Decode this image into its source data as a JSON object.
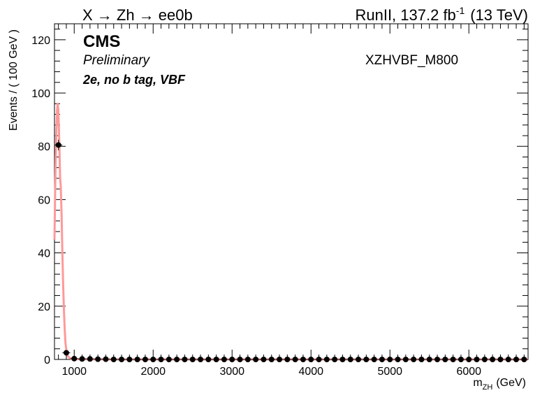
{
  "header": {
    "left_text": "X → Zh → ee0b",
    "right_text_main": "RunII, 137.2 fb",
    "right_text_sup": "-1",
    "right_text_energy": "(13 TeV)"
  },
  "labels": {
    "cms": "CMS",
    "preliminary": "Preliminary",
    "category": "2e, no b tag, VBF",
    "sample": "XZHVBF_M800"
  },
  "axes": {
    "ylabel": "Events / ( 100 GeV )",
    "xlabel_main": "m",
    "xlabel_sub": "ZH",
    "xlabel_unit": "(GeV)"
  },
  "colors": {
    "curve": "#ff9999",
    "points": "#000000"
  },
  "chart_data": {
    "type": "scatter",
    "xlim": [
      750,
      6750
    ],
    "ylim": [
      0,
      126
    ],
    "x_ticks": [
      1000,
      2000,
      3000,
      4000,
      5000,
      6000
    ],
    "y_ticks": [
      0,
      20,
      40,
      60,
      80,
      100,
      120
    ],
    "series": [
      {
        "kind": "points_with_errors",
        "x": [
          800,
          900,
          1000,
          1100,
          1200,
          1300,
          1400,
          1500,
          1600,
          1700,
          1800,
          1900,
          2000,
          2100,
          2200,
          2300,
          2400,
          2500,
          2600,
          2700,
          2800,
          2900,
          3000,
          3100,
          3200,
          3300,
          3400,
          3500,
          3600,
          3700,
          3800,
          3900,
          4000,
          4100,
          4200,
          4300,
          4400,
          4500,
          4600,
          4700,
          4800,
          4900,
          5000,
          5100,
          5200,
          5300,
          5400,
          5500,
          5600,
          5700,
          5800,
          5900,
          6000,
          6100,
          6200,
          6300,
          6400,
          6500,
          6600,
          6700
        ],
        "y": [
          80.5,
          2.5,
          0.3,
          0.2,
          0.2,
          0.1,
          0.1,
          0,
          0,
          0,
          0,
          0,
          0,
          0,
          0,
          0,
          0,
          0,
          0,
          0,
          0,
          0,
          0,
          0,
          0,
          0,
          0,
          0,
          0,
          0,
          0,
          0,
          0,
          0,
          0,
          0,
          0,
          0,
          0,
          0,
          0,
          0,
          0,
          0,
          0,
          0,
          0,
          0,
          0,
          0,
          0,
          0,
          0,
          0,
          0,
          0,
          0,
          0,
          0,
          0
        ],
        "yerr": [
          2.0,
          0.6,
          0.2,
          0.15,
          0.1,
          0.1,
          0.1,
          0,
          0,
          0,
          0,
          0,
          0,
          0,
          0,
          0,
          0,
          0,
          0,
          0,
          0,
          0,
          0,
          0,
          0,
          0,
          0,
          0,
          0,
          0,
          0,
          0,
          0,
          0,
          0,
          0,
          0,
          0,
          0,
          0,
          0,
          0,
          0,
          0,
          0,
          0,
          0,
          0,
          0,
          0,
          0,
          0,
          0,
          0,
          0,
          0,
          0,
          0,
          0,
          0
        ]
      },
      {
        "kind": "curve",
        "x": [
          750,
          758,
          766,
          774,
          782,
          790,
          798,
          806,
          814,
          822,
          830,
          840,
          850,
          860,
          870,
          880,
          890,
          900,
          910,
          920,
          940,
          960,
          1000,
          1100,
          1200,
          1400,
          2000,
          3000,
          4000,
          5000,
          6000,
          6750
        ],
        "y": [
          45,
          62,
          76,
          86,
          93,
          96,
          94,
          87,
          78,
          68,
          65,
          54,
          40,
          28,
          18,
          11,
          6,
          3.5,
          2,
          1.2,
          0.6,
          0.3,
          0.1,
          0.05,
          0.02,
          0,
          0,
          0,
          0,
          0,
          0,
          0
        ]
      }
    ]
  }
}
